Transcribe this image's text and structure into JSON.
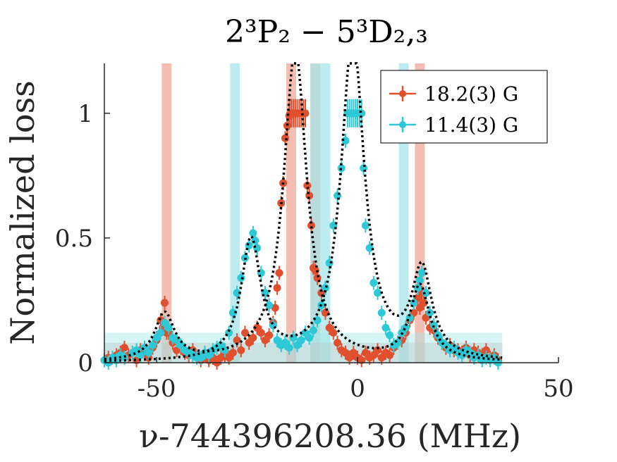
{
  "chart_data": {
    "type": "scatter",
    "title": "2³P₂ − 5³D₂,₃",
    "xlabel": "ν-744396208.36 (MHz)",
    "ylabel": "Normalized loss",
    "xlim": [
      -63,
      50
    ],
    "ylim": [
      0,
      1.2
    ],
    "xticks": [
      -50,
      0,
      50
    ],
    "yticks": [
      0,
      0.5,
      1
    ],
    "xtick_labels": [
      "-50",
      "0",
      "50"
    ],
    "ytick_labels": [
      "0",
      "0.5",
      "1"
    ],
    "legend_position": "top-right",
    "grid": false,
    "colors": {
      "red": "#e0502f",
      "cyan": "#2dc9d6",
      "red_band": "#f0a898",
      "cyan_band": "#a6e6ea",
      "fit": "#000000"
    },
    "series": [
      {
        "name": "18.2(3) G",
        "color": "#e0502f",
        "transition_bands": [
          -47.5,
          -16.5,
          -10.5,
          15.5
        ],
        "background_band": [
          0,
          0.08
        ],
        "points": [
          [
            -63,
            0.01
          ],
          [
            -62,
            0.02
          ],
          [
            -60,
            0.03
          ],
          [
            -59,
            0.04
          ],
          [
            -58,
            0.06
          ],
          [
            -57,
            0.03
          ],
          [
            -55,
            0.01
          ],
          [
            -54,
            0.05
          ],
          [
            -53,
            0.04
          ],
          [
            -52,
            0.02
          ],
          [
            -51,
            0.06
          ],
          [
            -50,
            0.09
          ],
          [
            -49,
            0.17
          ],
          [
            -48.5,
            0.14
          ],
          [
            -48,
            0.24
          ],
          [
            -47.5,
            0.12
          ],
          [
            -47,
            0.12
          ],
          [
            -46,
            0.08
          ],
          [
            -45,
            0.05
          ],
          [
            -44,
            0.06
          ],
          [
            -43,
            0.04
          ],
          [
            -42,
            0.03
          ],
          [
            -41,
            0.05
          ],
          [
            -40,
            0.02
          ],
          [
            -39,
            0.01
          ],
          [
            -38,
            0.03
          ],
          [
            -37,
            0.01
          ],
          [
            -36,
            0.02
          ],
          [
            -35,
            0.0
          ],
          [
            -34,
            0.02
          ],
          [
            -33,
            0.03
          ],
          [
            -32,
            0.02
          ],
          [
            -31,
            0.04
          ],
          [
            -30,
            0.09
          ],
          [
            -29,
            0.05
          ],
          [
            -28,
            0.12
          ],
          [
            -27,
            0.08
          ],
          [
            -26,
            0.1
          ],
          [
            -25,
            0.14
          ],
          [
            -24,
            0.12
          ],
          [
            -23,
            0.09
          ],
          [
            -22,
            0.11
          ],
          [
            -21,
            0.16
          ],
          [
            -20.5,
            0.22
          ],
          [
            -20,
            0.3
          ],
          [
            -19.5,
            0.36
          ],
          [
            -19,
            0.64
          ],
          [
            -18.5,
            0.72
          ],
          [
            -18,
            0.9
          ],
          [
            -17.5,
            0.95
          ],
          [
            -17,
            0.99
          ],
          [
            -16.5,
            1.0
          ],
          [
            -16,
            1.0
          ],
          [
            -15.5,
            1.0
          ],
          [
            -15,
            1.0
          ],
          [
            -14.5,
            1.0
          ],
          [
            -14,
            1.0
          ],
          [
            -13.5,
            1.0
          ],
          [
            -13,
            1.0
          ],
          [
            -12.5,
            0.71
          ],
          [
            -12,
            0.67
          ],
          [
            -11.5,
            0.55
          ],
          [
            -11,
            0.38
          ],
          [
            -10.5,
            0.37
          ],
          [
            -10,
            0.34
          ],
          [
            -9,
            0.28
          ],
          [
            -8,
            0.2
          ],
          [
            -7,
            0.14
          ],
          [
            -6,
            0.12
          ],
          [
            -5,
            0.08
          ],
          [
            -4,
            0.05
          ],
          [
            -3,
            0.04
          ],
          [
            -2,
            0.02
          ],
          [
            -1,
            0.04
          ],
          [
            0,
            0.02
          ],
          [
            1,
            0.01
          ],
          [
            2,
            0.04
          ],
          [
            3,
            0.02
          ],
          [
            4,
            0.03
          ],
          [
            5,
            0.05
          ],
          [
            6,
            0.02
          ],
          [
            7,
            0.04
          ],
          [
            8,
            0.03
          ],
          [
            9,
            0.06
          ],
          [
            10,
            0.08
          ],
          [
            11,
            0.09
          ],
          [
            12,
            0.12
          ],
          [
            13,
            0.17
          ],
          [
            14,
            0.2
          ],
          [
            15,
            0.26
          ],
          [
            15.5,
            0.22
          ],
          [
            16,
            0.28
          ],
          [
            16.5,
            0.24
          ],
          [
            17,
            0.18
          ],
          [
            18,
            0.14
          ],
          [
            19,
            0.13
          ],
          [
            20,
            0.1
          ],
          [
            21,
            0.08
          ],
          [
            22,
            0.06
          ],
          [
            23,
            0.07
          ],
          [
            24,
            0.05
          ],
          [
            25,
            0.05
          ],
          [
            26,
            0.04
          ],
          [
            27,
            0.06
          ],
          [
            28,
            0.03
          ],
          [
            29,
            0.05
          ],
          [
            30,
            0.04
          ],
          [
            31,
            0.03
          ],
          [
            32,
            0.05
          ],
          [
            33,
            0.02
          ],
          [
            34,
            0.03
          ],
          [
            35,
            0.01
          ]
        ]
      },
      {
        "name": "11.4(3) G",
        "color": "#2dc9d6",
        "transition_bands": [
          -30.5,
          -10.5,
          -8,
          11.5
        ],
        "background_band": [
          0,
          0.12
        ],
        "points": [
          [
            -63,
            0.01
          ],
          [
            -62,
            0.0
          ],
          [
            -61,
            0.02
          ],
          [
            -60,
            0.01
          ],
          [
            -59,
            0.03
          ],
          [
            -58,
            0.02
          ],
          [
            -56,
            0.04
          ],
          [
            -55,
            0.05
          ],
          [
            -54,
            0.03
          ],
          [
            -53,
            0.06
          ],
          [
            -52,
            0.04
          ],
          [
            -51,
            0.07
          ],
          [
            -50,
            0.1
          ],
          [
            -49,
            0.12
          ],
          [
            -48,
            0.16
          ],
          [
            -47,
            0.14
          ],
          [
            -46,
            0.1
          ],
          [
            -45,
            0.09
          ],
          [
            -44,
            0.07
          ],
          [
            -43,
            0.05
          ],
          [
            -42,
            0.04
          ],
          [
            -41,
            0.03
          ],
          [
            -40,
            0.02
          ],
          [
            -39,
            0.02
          ],
          [
            -38,
            0.04
          ],
          [
            -37,
            0.03
          ],
          [
            -36,
            0.05
          ],
          [
            -35,
            0.06
          ],
          [
            -34,
            0.07
          ],
          [
            -33,
            0.05
          ],
          [
            -32,
            0.12
          ],
          [
            -31,
            0.2
          ],
          [
            -30,
            0.28
          ],
          [
            -29,
            0.34
          ],
          [
            -28,
            0.42
          ],
          [
            -27,
            0.47
          ],
          [
            -26,
            0.52
          ],
          [
            -25.5,
            0.49
          ],
          [
            -25,
            0.46
          ],
          [
            -24,
            0.36
          ],
          [
            -23,
            0.28
          ],
          [
            -22,
            0.23
          ],
          [
            -21,
            0.15
          ],
          [
            -20,
            0.09
          ],
          [
            -19,
            0.07
          ],
          [
            -18,
            0.08
          ],
          [
            -17,
            0.06
          ],
          [
            -16,
            0.1
          ],
          [
            -15,
            0.07
          ],
          [
            -14,
            0.09
          ],
          [
            -13,
            0.12
          ],
          [
            -12,
            0.1
          ],
          [
            -11,
            0.13
          ],
          [
            -10,
            0.17
          ],
          [
            -9,
            0.23
          ],
          [
            -8,
            0.3
          ],
          [
            -7,
            0.4
          ],
          [
            -6,
            0.55
          ],
          [
            -5,
            0.67
          ],
          [
            -4,
            0.78
          ],
          [
            -3,
            0.89
          ],
          [
            -2.5,
            1.0
          ],
          [
            -2,
            1.0
          ],
          [
            -1.5,
            1.0
          ],
          [
            -1,
            1.0
          ],
          [
            -0.5,
            1.0
          ],
          [
            0,
            1.0
          ],
          [
            0.5,
            1.0
          ],
          [
            1,
            1.0
          ],
          [
            1.5,
            0.78
          ],
          [
            2,
            0.55
          ],
          [
            3,
            0.46
          ],
          [
            4,
            0.32
          ],
          [
            5,
            0.28
          ],
          [
            6,
            0.2
          ],
          [
            7,
            0.14
          ],
          [
            8,
            0.11
          ],
          [
            9,
            0.07
          ],
          [
            10,
            0.08
          ],
          [
            11,
            0.12
          ],
          [
            12,
            0.14
          ],
          [
            13,
            0.18
          ],
          [
            14,
            0.24
          ],
          [
            15,
            0.3
          ],
          [
            15.5,
            0.33
          ],
          [
            16,
            0.36
          ],
          [
            17,
            0.28
          ],
          [
            18,
            0.2
          ],
          [
            19,
            0.15
          ],
          [
            20,
            0.11
          ],
          [
            21,
            0.08
          ],
          [
            22,
            0.07
          ],
          [
            23,
            0.05
          ],
          [
            24,
            0.06
          ],
          [
            25,
            0.04
          ],
          [
            26,
            0.03
          ],
          [
            27,
            0.05
          ],
          [
            28,
            0.04
          ],
          [
            29,
            0.02
          ],
          [
            30,
            0.03
          ],
          [
            31,
            0.01
          ],
          [
            32,
            0.02
          ],
          [
            33,
            0.01
          ],
          [
            34,
            0.02
          ],
          [
            35,
            0.0
          ]
        ]
      }
    ],
    "fits": [
      {
        "peaks": [
          [
            -48,
            0.19,
            3
          ],
          [
            -15.5,
            1.25,
            3.5
          ],
          [
            15.5,
            0.3,
            3
          ]
        ]
      },
      {
        "peaks": [
          [
            -26.5,
            0.48,
            3
          ],
          [
            -1.2,
            1.3,
            3.5
          ],
          [
            16,
            0.35,
            3
          ]
        ]
      }
    ]
  }
}
